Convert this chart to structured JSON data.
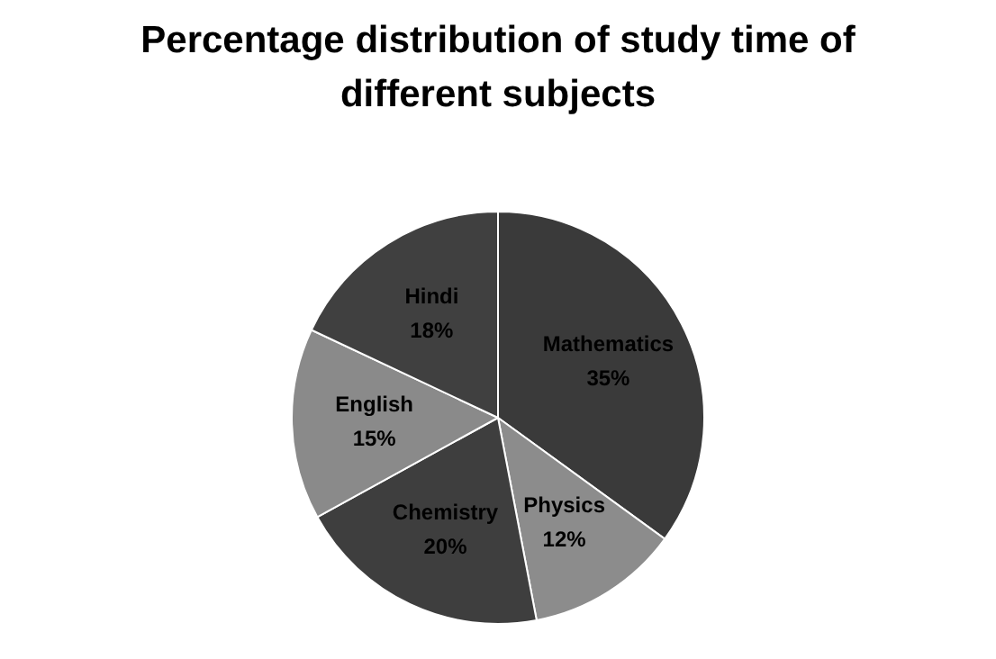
{
  "chart_data": {
    "type": "pie",
    "title": "Percentage distribution of study time of different subjects",
    "categories": [
      "Mathematics",
      "Physics",
      "Chemistry",
      "English",
      "Hindi"
    ],
    "values": [
      35,
      12,
      20,
      15,
      18
    ],
    "value_labels": [
      "35%",
      "12%",
      "20%",
      "15%",
      "18%"
    ],
    "colors": [
      "#3a3a3a",
      "#8c8c8c",
      "#3e3e3e",
      "#8a8a8a",
      "#404040"
    ],
    "legend": false
  }
}
